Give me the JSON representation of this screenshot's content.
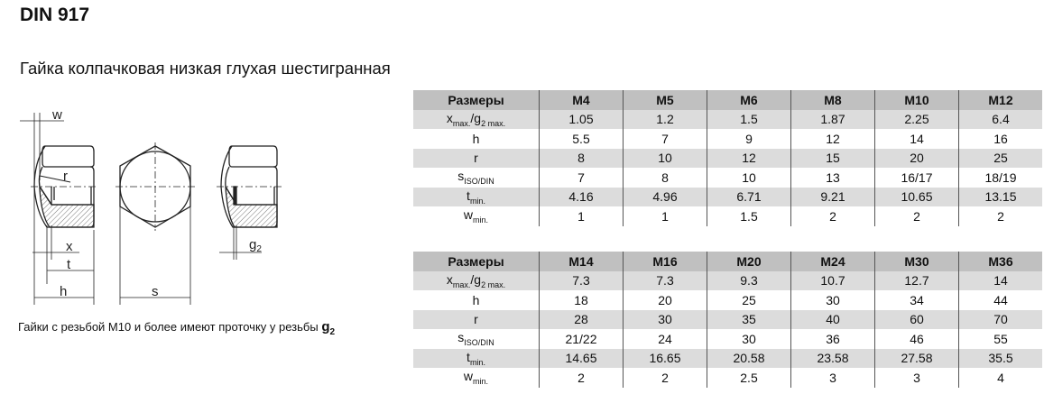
{
  "title": "DIN 917",
  "subtitle": "Гайка колпачковая низкая глухая шестигранная",
  "note": {
    "text": "Гайки с резьбой M10 и более имеют проточку у резьбы ",
    "symbol": "g",
    "symbol_sub": "2"
  },
  "drawing": {
    "labels": {
      "w": "w",
      "r": "r",
      "x": "x",
      "t": "t",
      "h": "h",
      "s": "s",
      "g": "g",
      "g_sub": "2"
    }
  },
  "row_labels": [
    {
      "main": "x",
      "sub": "max.",
      "main2": "/g",
      "sub2": "2 max."
    },
    {
      "main": "h",
      "sub": ""
    },
    {
      "main": "r",
      "sub": ""
    },
    {
      "main": "s",
      "sub": "ISO/DIN"
    },
    {
      "main": "t",
      "sub": "min."
    },
    {
      "main": "w",
      "sub": "min."
    }
  ],
  "tables": [
    {
      "header": [
        "Размеры",
        "M4",
        "M5",
        "M6",
        "M8",
        "M10",
        "M12"
      ],
      "rows": [
        [
          "1.05",
          "1.2",
          "1.5",
          "1.87",
          "2.25",
          "6.4"
        ],
        [
          "5.5",
          "7",
          "9",
          "12",
          "14",
          "16"
        ],
        [
          "8",
          "10",
          "12",
          "15",
          "20",
          "25"
        ],
        [
          "7",
          "8",
          "10",
          "13",
          "16/17",
          "18/19"
        ],
        [
          "4.16",
          "4.96",
          "6.71",
          "9.21",
          "10.65",
          "13.15"
        ],
        [
          "1",
          "1",
          "1.5",
          "2",
          "2",
          "2"
        ]
      ]
    },
    {
      "header": [
        "Размеры",
        "M14",
        "M16",
        "M20",
        "M24",
        "M30",
        "M36"
      ],
      "rows": [
        [
          "7.3",
          "7.3",
          "9.3",
          "10.7",
          "12.7",
          "14"
        ],
        [
          "18",
          "20",
          "25",
          "30",
          "34",
          "44"
        ],
        [
          "28",
          "30",
          "35",
          "40",
          "60",
          "70"
        ],
        [
          "21/22",
          "24",
          "30",
          "36",
          "46",
          "55"
        ],
        [
          "14.65",
          "16.65",
          "20.58",
          "23.58",
          "27.58",
          "35.5"
        ],
        [
          "2",
          "2",
          "2.5",
          "3",
          "3",
          "4"
        ]
      ]
    }
  ]
}
